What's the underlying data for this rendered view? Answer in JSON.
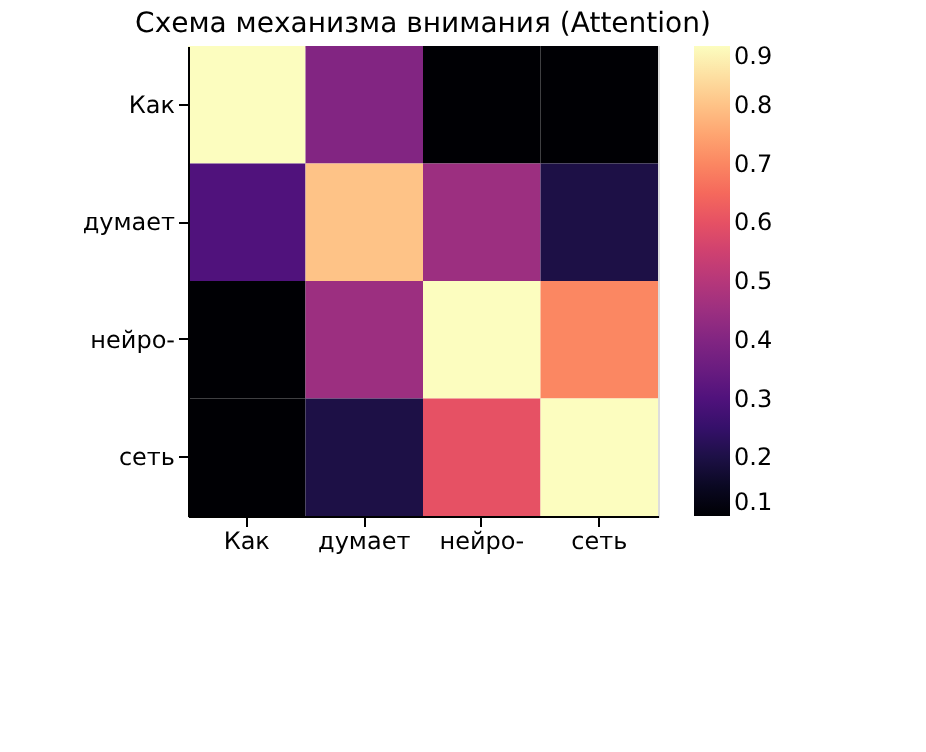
{
  "chart_data": {
    "type": "heatmap",
    "title": "Схема механизма внимания (Attention)",
    "categories": [
      "Как",
      "думает",
      "нейро-",
      "сеть"
    ],
    "y_categories": [
      "Как",
      "думает",
      "нейро-",
      "сеть"
    ],
    "cells": [
      [
        0.9,
        0.4,
        0.1,
        0.1
      ],
      [
        0.3,
        0.8,
        0.45,
        0.2
      ],
      [
        0.1,
        0.45,
        0.9,
        0.7
      ],
      [
        0.1,
        0.2,
        0.6,
        0.9
      ]
    ],
    "clim": [
      0.1,
      0.9
    ],
    "cticks": [
      0.1,
      0.2,
      0.3,
      0.4,
      0.5,
      0.6,
      0.7,
      0.8,
      0.9
    ]
  }
}
